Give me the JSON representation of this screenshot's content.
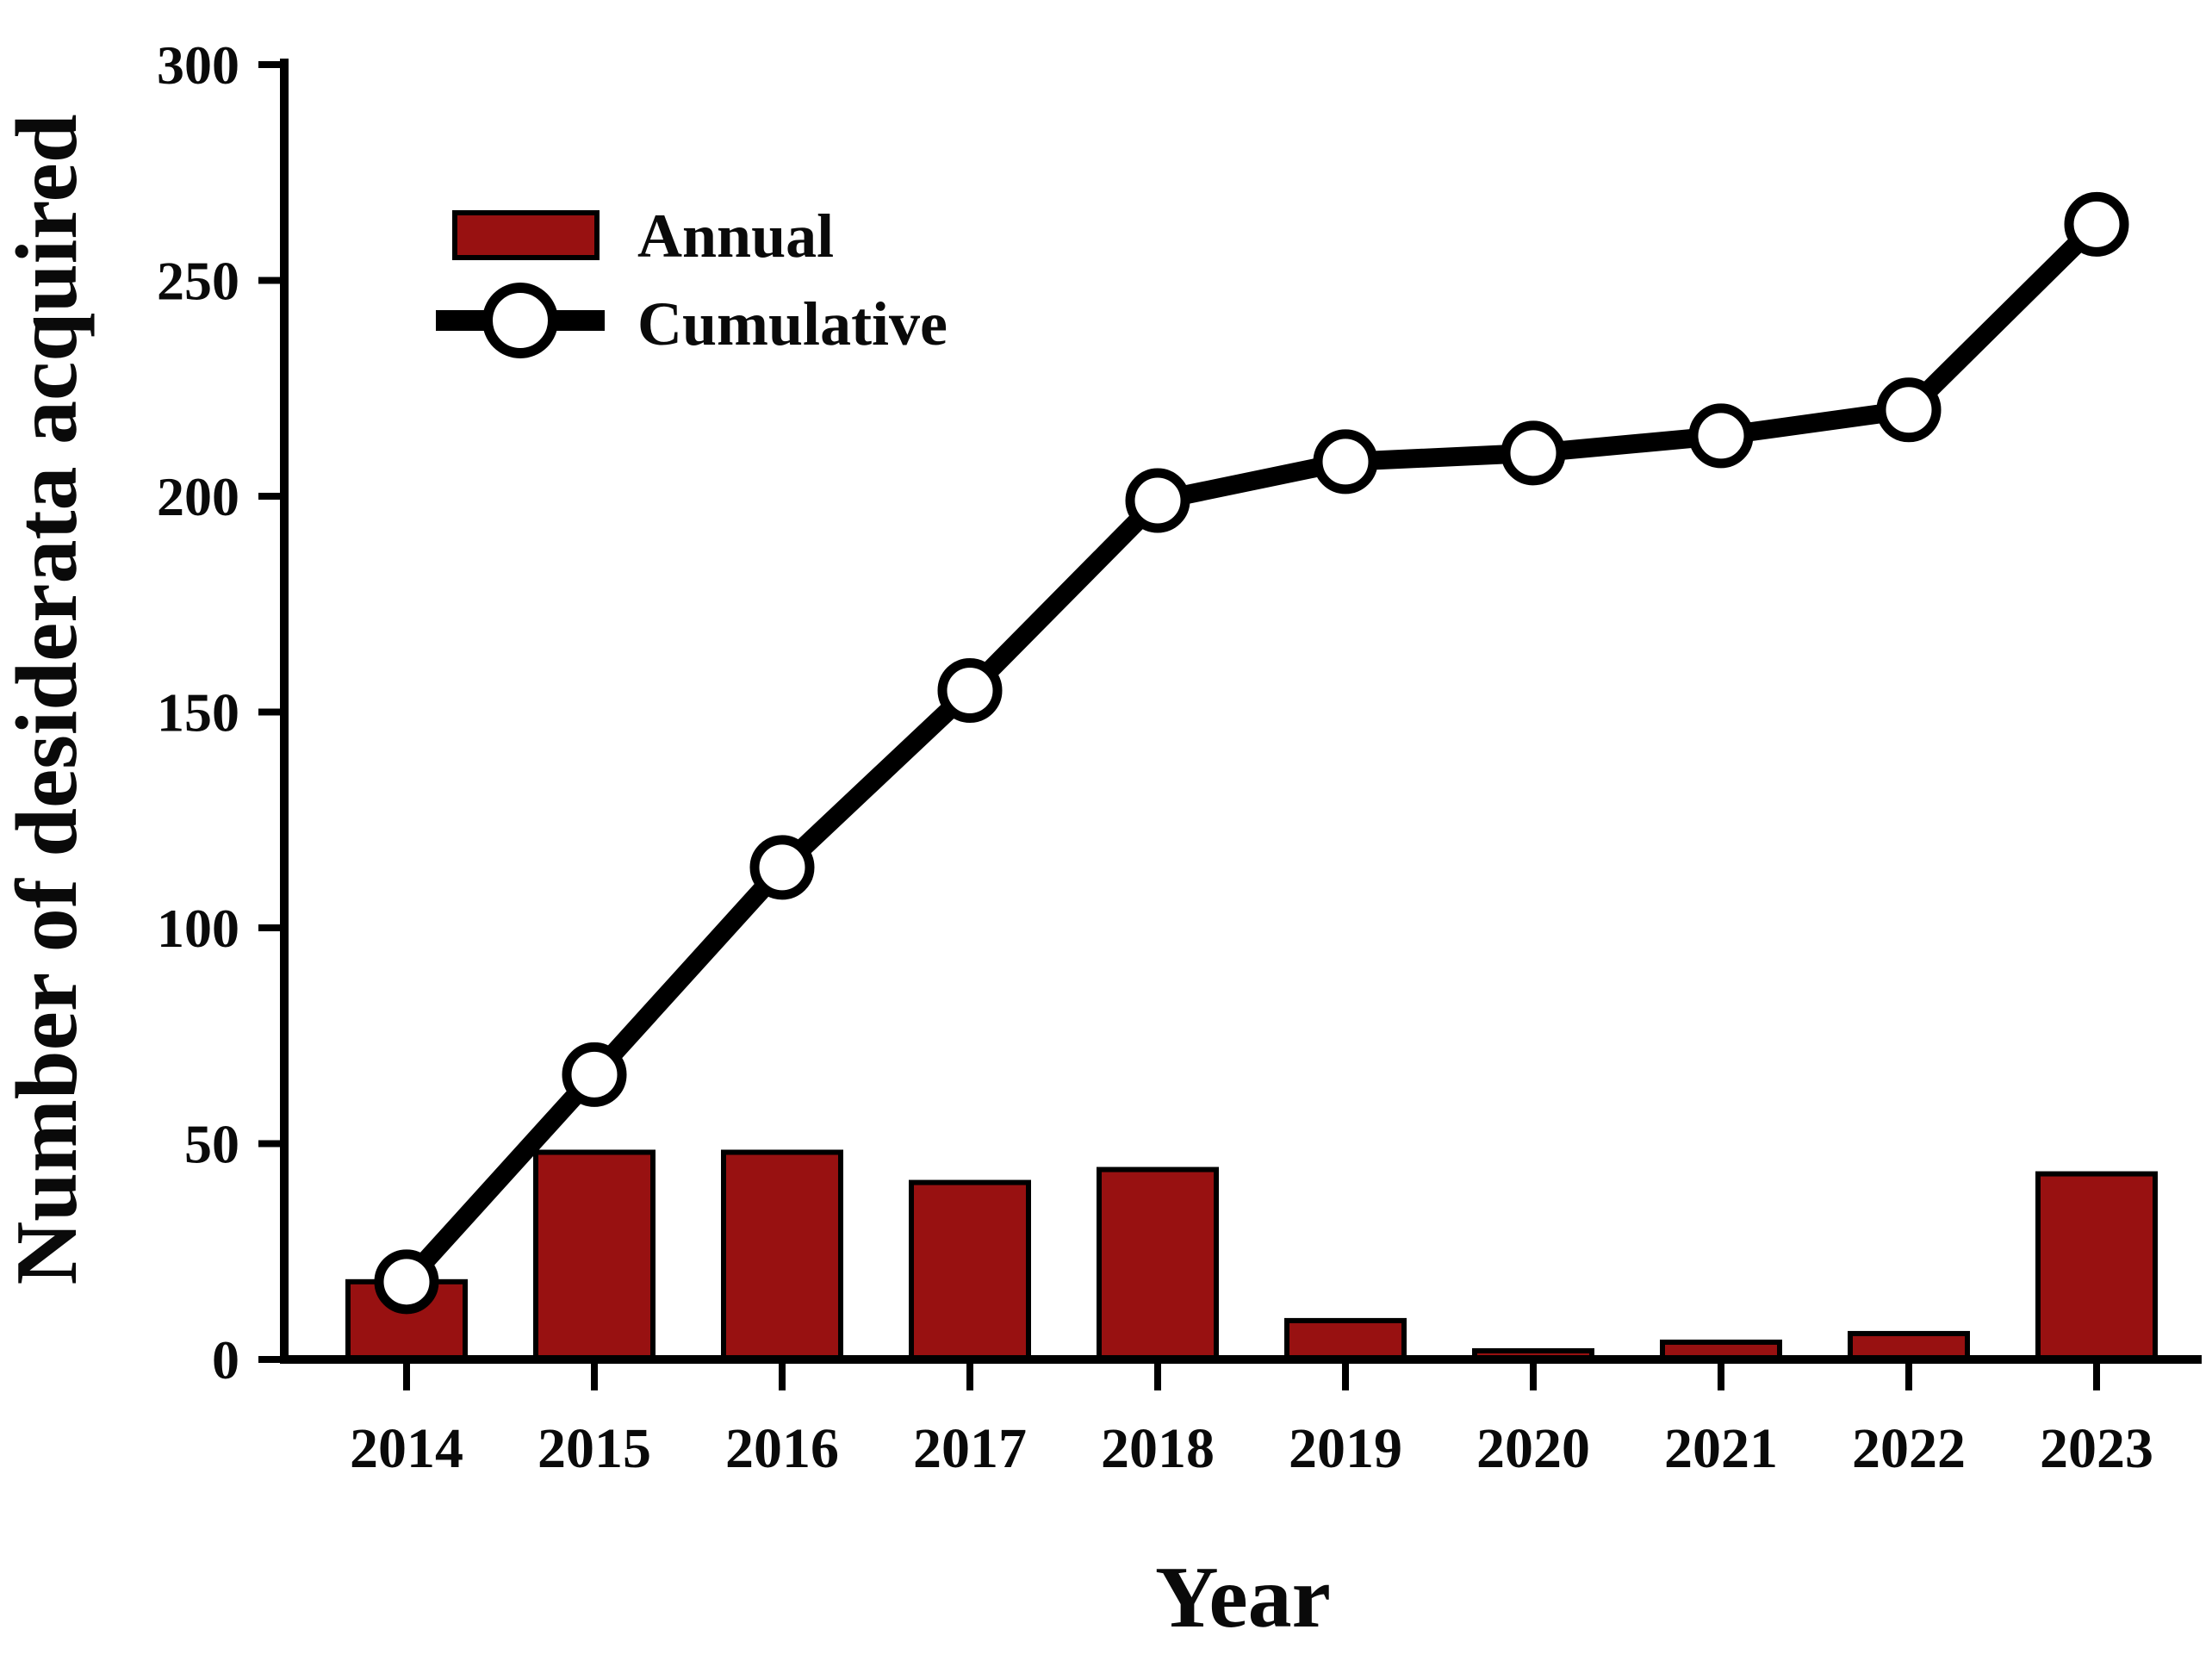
{
  "figure": {
    "background_color": "#ffffff",
    "axis_color": "#000000",
    "text_color": "#0a0a0a"
  },
  "chart_data": {
    "type": "bar",
    "subtype": "bar-line-combo",
    "categories": [
      "2014",
      "2015",
      "2016",
      "2017",
      "2018",
      "2019",
      "2020",
      "2021",
      "2022",
      "2023"
    ],
    "series": [
      {
        "name": "Annual",
        "type": "bar",
        "color": "#981111",
        "border_color": "#000000",
        "values": [
          18,
          48,
          48,
          41,
          44,
          9,
          2,
          4,
          6,
          43
        ]
      },
      {
        "name": "Cumulative",
        "type": "line",
        "color": "#000000",
        "marker": "open-circle",
        "marker_fill": "#ffffff",
        "values": [
          18,
          66,
          114,
          155,
          199,
          208,
          210,
          214,
          220,
          263
        ]
      }
    ],
    "title": "",
    "xlabel": "Year",
    "ylabel": "Number of desiderata acquired",
    "ylim": [
      0,
      300
    ],
    "yticks": [
      0,
      50,
      100,
      150,
      200,
      250,
      300
    ],
    "grid": false,
    "legend_position": "upper-left"
  }
}
